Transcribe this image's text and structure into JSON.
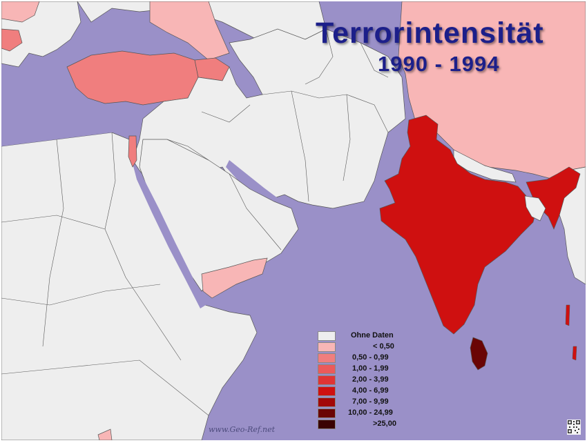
{
  "title": "Terrorintensität",
  "subtitle": "1990 - 1994",
  "watermark": "www.Geo-Ref.net",
  "colors": {
    "sea": "#9a90c8",
    "land_nodata": "#eeeeee",
    "border": "#555555",
    "title": "#1c1f8a"
  },
  "legend": [
    {
      "label": "Ohne Daten",
      "color": "#eeeeee"
    },
    {
      "label": "<  0,50",
      "color": "#f8b6b6"
    },
    {
      "label": "0,50 -  0,99",
      "color": "#f07e7e"
    },
    {
      "label": "1,00 -  1,99",
      "color": "#ec5a5a"
    },
    {
      "label": "2,00 -  3,99",
      "color": "#e03434"
    },
    {
      "label": "4,00 -  6,99",
      "color": "#cf1010"
    },
    {
      "label": "7,00 -  9,99",
      "color": "#a20808"
    },
    {
      "label": "10,00 - 24,99",
      "color": "#6a0505"
    },
    {
      "label": ">25,00",
      "color": "#3a0202"
    }
  ],
  "regions": [
    {
      "name": "India",
      "category": "4,00 -  6,99"
    },
    {
      "name": "Sri Lanka",
      "category": "10,00 - 24,99"
    },
    {
      "name": "Turkey",
      "category": "0,50 -  0,99"
    },
    {
      "name": "China",
      "category": "<  0,50"
    },
    {
      "name": "Yemen",
      "category": "<  0,50"
    }
  ]
}
